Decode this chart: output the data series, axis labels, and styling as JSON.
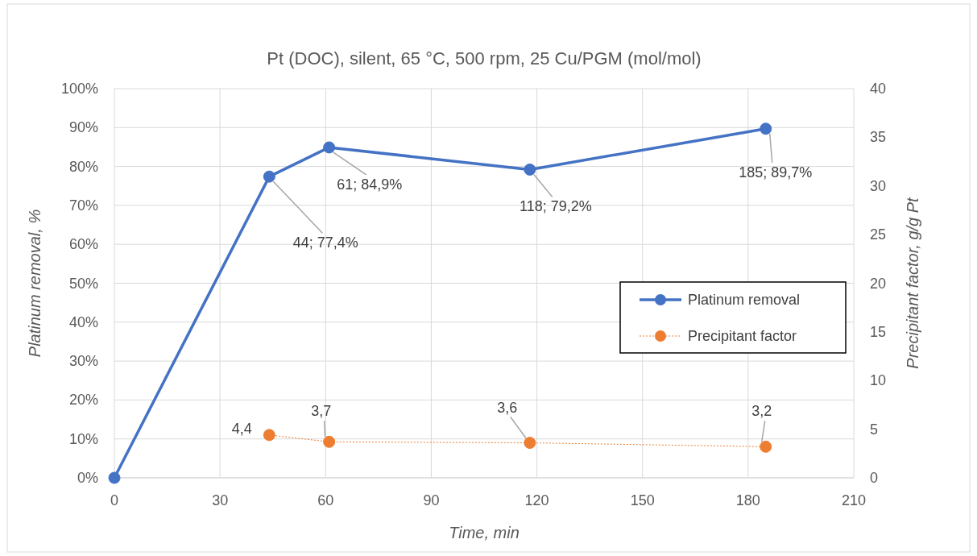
{
  "chart_data": {
    "type": "line",
    "title": "Pt (DOC), silent, 65 °C, 500 rpm, 25 Cu/PGM (mol/mol)",
    "xlabel": "Time, min",
    "ylabel": "Platinum removal, %",
    "y2label": "Precipitant factor, g/g Pt",
    "xlim": [
      0,
      210
    ],
    "xticks": [
      0,
      30,
      60,
      90,
      120,
      150,
      180,
      210
    ],
    "ylim": [
      0,
      100
    ],
    "yticks": [
      {
        "value": 0,
        "label": "0%"
      },
      {
        "value": 10,
        "label": "10%"
      },
      {
        "value": 20,
        "label": "20%"
      },
      {
        "value": 30,
        "label": "30%"
      },
      {
        "value": 40,
        "label": "40%"
      },
      {
        "value": 50,
        "label": "50%"
      },
      {
        "value": 60,
        "label": "60%"
      },
      {
        "value": 70,
        "label": "70%"
      },
      {
        "value": 80,
        "label": "80%"
      },
      {
        "value": 90,
        "label": "90%"
      },
      {
        "value": 100,
        "label": "100%"
      }
    ],
    "y2lim": [
      0,
      40
    ],
    "y2ticks": [
      0,
      5,
      10,
      15,
      20,
      25,
      30,
      35,
      40
    ],
    "grid": true,
    "legend": "right",
    "marker": "circle",
    "series": [
      {
        "name": "Platinum removal",
        "color": "#4472c4",
        "x": [
          0,
          44,
          61,
          118,
          185
        ],
        "values": [
          0,
          77.4,
          84.9,
          79.2,
          89.7
        ],
        "value_labels": [
          null,
          "44; 77,4%",
          "61; 84,9%",
          "118; 79,2%",
          "185; 89,7%"
        ],
        "line_style": "solid"
      },
      {
        "name": "Precipitant factor",
        "color": "#ed7d31",
        "axis": "y2",
        "x": [
          44,
          61,
          118,
          185
        ],
        "values": [
          4.4,
          3.7,
          3.6,
          3.2
        ],
        "value_labels": [
          "4,4",
          "3,7",
          "3,6",
          "3,2"
        ],
        "line_style": "dotted"
      }
    ]
  }
}
